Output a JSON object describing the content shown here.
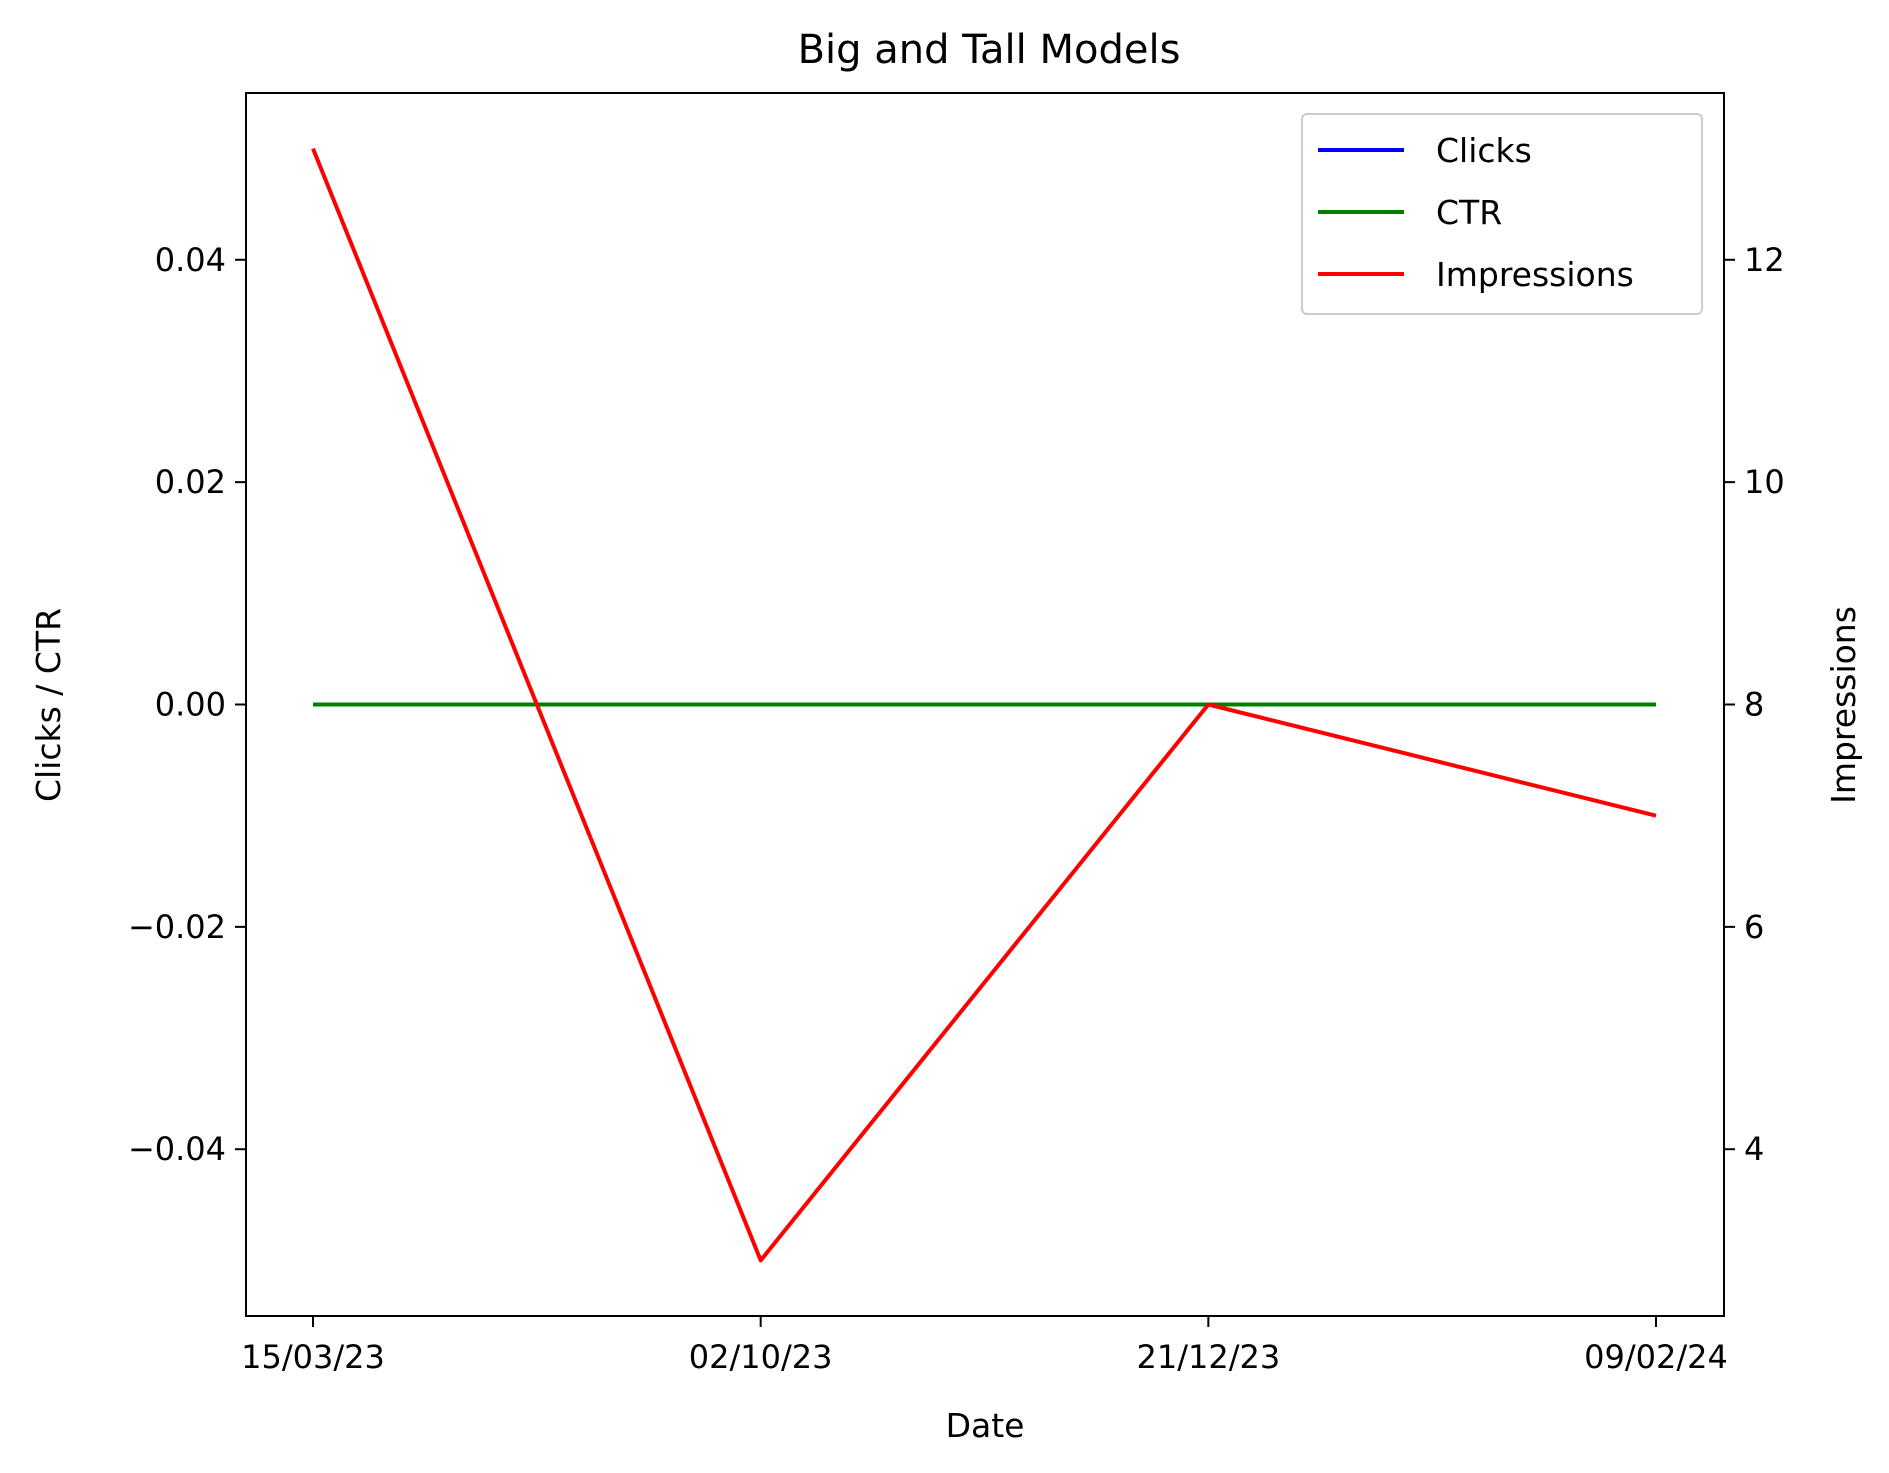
{
  "chart_data": {
    "type": "line",
    "title": "Big and Tall Models",
    "xlabel": "Date",
    "ylabel_left": "Clicks / CTR",
    "ylabel_right": "Impressions",
    "categories": [
      "15/03/23",
      "02/10/23",
      "21/12/23",
      "09/02/24"
    ],
    "left_axis": {
      "ylim": [
        -0.055,
        0.055
      ],
      "ticks": [
        -0.04,
        -0.02,
        0.0,
        0.02,
        0.04
      ],
      "tick_labels": [
        "−0.04",
        "−0.02",
        "0.00",
        "0.02",
        "0.04"
      ]
    },
    "right_axis": {
      "ylim": [
        2.5,
        13.5
      ],
      "ticks": [
        4,
        6,
        8,
        10,
        12
      ],
      "tick_labels": [
        "4",
        "6",
        "8",
        "10",
        "12"
      ]
    },
    "series": [
      {
        "name": "Clicks",
        "axis": "left",
        "color": "#0000ff",
        "values": [
          0,
          0,
          0,
          0
        ]
      },
      {
        "name": "CTR",
        "axis": "left",
        "color": "#008000",
        "values": [
          0,
          0,
          0,
          0
        ]
      },
      {
        "name": "Impressions",
        "axis": "right",
        "color": "#ff0000",
        "values": [
          13,
          3,
          8,
          7
        ]
      }
    ],
    "legend": {
      "position": "top-right",
      "entries": [
        "Clicks",
        "CTR",
        "Impressions"
      ]
    },
    "grid": false
  }
}
